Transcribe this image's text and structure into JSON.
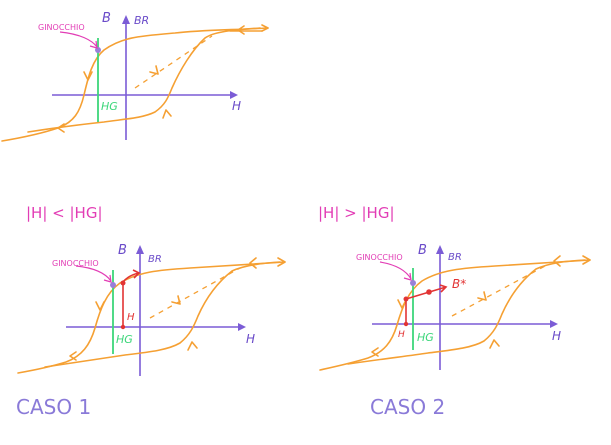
{
  "labels": {
    "knee": "GINOCCHIO",
    "b": "B",
    "br": "BR",
    "h": "H",
    "hg": "HG",
    "h_small": "H",
    "b_star": "B*"
  },
  "conditions": {
    "case1": "|H| < |HG|",
    "case2": "|H| > |HG|"
  },
  "cases": {
    "case1": "CASO 1",
    "case2": "CASO 2"
  },
  "colors": {
    "curve": "#f5a033",
    "axes": "#7b5cd6",
    "hg_line": "#3cd67a",
    "knee_label": "#e23db5",
    "red": "#e23434"
  }
}
